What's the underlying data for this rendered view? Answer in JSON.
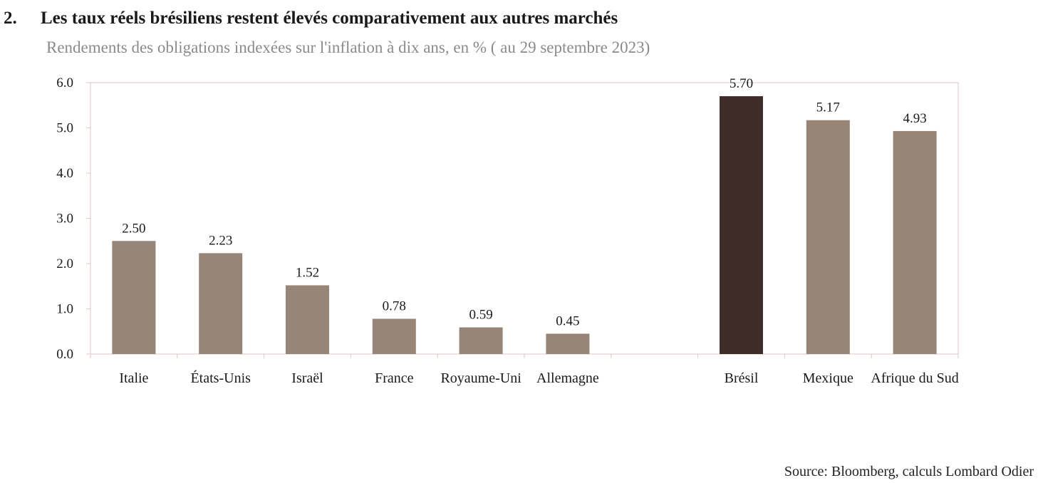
{
  "figure_number": "2.",
  "title": "Les taux réels brésiliens restent élevés comparativement aux autres marchés",
  "subtitle": "Rendements des obligations indexées sur l'inflation à dix ans, en % ( au 29 septembre 2023)",
  "source": "Source: Bloomberg, calculs Lombard Odier",
  "colors": {
    "bar": "#978578",
    "highlight": "#3e2c29",
    "grid": "#d9c9c6"
  },
  "chart_data": {
    "type": "bar",
    "categories": [
      "Italie",
      "États-Unis",
      "Israël",
      "France",
      "Royaume-Uni",
      "Allemagne",
      "",
      "Brésil",
      "Mexique",
      "Afrique du Sud"
    ],
    "values": [
      2.5,
      2.23,
      1.52,
      0.78,
      0.59,
      0.45,
      null,
      5.7,
      5.17,
      4.93
    ],
    "data_labels": [
      "2.50",
      "2.23",
      "1.52",
      "0.78",
      "0.59",
      "0.45",
      "",
      "5.70",
      "5.17",
      "4.93"
    ],
    "highlight_category": "Brésil",
    "ylim": [
      0,
      6
    ],
    "yticks": [
      "0.0",
      "1.0",
      "2.0",
      "3.0",
      "4.0",
      "5.0",
      "6.0"
    ],
    "xlabel": "",
    "ylabel": "",
    "grid": false,
    "legend": "none"
  }
}
